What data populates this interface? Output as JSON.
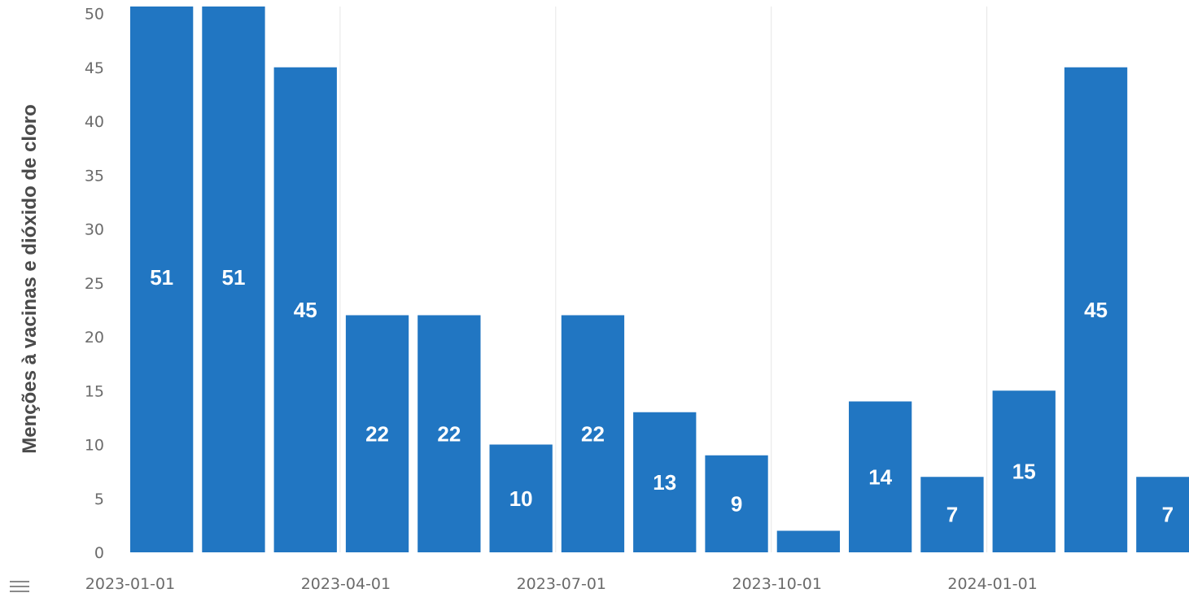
{
  "chart_data": {
    "type": "bar",
    "ylabel": "Menções à vacinas e dióxido de cloro",
    "xlabel": "",
    "ylim": [
      0,
      51
    ],
    "yticks": [
      0,
      5,
      10,
      15,
      20,
      25,
      30,
      35,
      40,
      45,
      50
    ],
    "x_tick_labels": [
      "2023-01-01",
      "2023-04-01",
      "2023-07-01",
      "2023-10-01",
      "2024-01-01"
    ],
    "categories": [
      "2023-01",
      "2023-02",
      "2023-03",
      "2023-04",
      "2023-05",
      "2023-06",
      "2023-07",
      "2023-08",
      "2023-09",
      "2023-10",
      "2023-11",
      "2023-12",
      "2024-01",
      "2024-02",
      "2024-03"
    ],
    "values": [
      51,
      51,
      45,
      22,
      22,
      10,
      22,
      13,
      9,
      2,
      14,
      7,
      15,
      45,
      7
    ],
    "data_labels": [
      "51",
      "51",
      "45",
      "22",
      "22",
      "10",
      "22",
      "13",
      "9",
      "",
      "14",
      "7",
      "15",
      "45",
      "7"
    ],
    "bar_color": "#2176c2",
    "grid": "vertical"
  },
  "controls": {
    "menu_icon": "list-icon"
  }
}
